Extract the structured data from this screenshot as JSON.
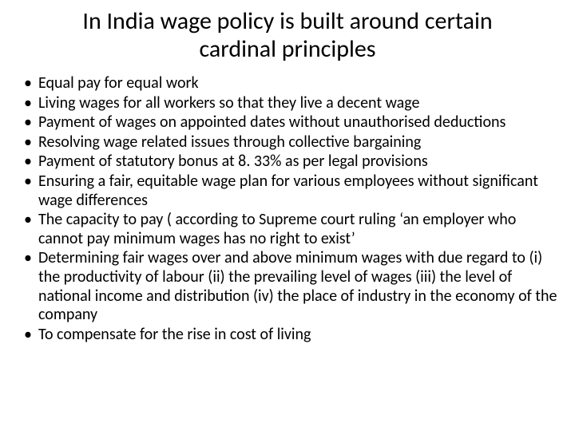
{
  "slide": {
    "title": "In India wage policy is built around certain cardinal principles",
    "title_fontsize": 30,
    "title_color": "#000000",
    "body_fontsize": 20,
    "body_color": "#000000",
    "background_color": "#ffffff",
    "bullets": [
      "Equal pay for equal work",
      "Living wages for all workers so that they live a decent wage",
      "Payment of wages on appointed dates without unauthorised deductions",
      "Resolving wage related issues through collective bargaining",
      "Payment of statutory bonus at 8. 33% as per legal provisions",
      "Ensuring a fair, equitable wage plan for various employees without significant wage differences",
      "The capacity to pay ( according to Supreme court ruling ‘an employer who cannot pay minimum wages has no right to exist’",
      "Determining fair wages over and above minimum wages with due regard to (i) the productivity of labour (ii) the prevailing level of wages (iii) the level of national income and distribution (iv) the place of industry in the economy of the company",
      "To compensate for the rise in cost of living"
    ]
  }
}
